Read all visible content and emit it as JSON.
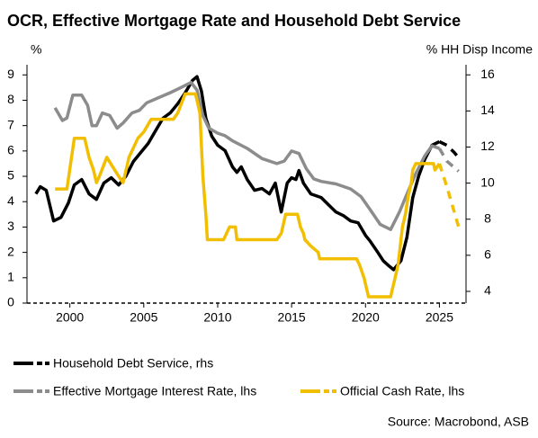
{
  "chart_data": {
    "type": "line",
    "title": "OCR, Effective Mortgage Rate and Household Debt Service",
    "ylabel": "%",
    "y2label": "% HH Disp Income",
    "source": "Source: Macrobond, ASB",
    "xlim": [
      1997.1,
      2026.8
    ],
    "xticks": [
      2000,
      2005,
      2010,
      2015,
      2020,
      2025
    ],
    "ylim": [
      0,
      9.4
    ],
    "yticks": [
      0,
      1,
      2,
      3,
      4,
      5,
      6,
      7,
      8,
      9
    ],
    "y2lim": [
      3.35,
      16.56
    ],
    "y2ticks": [
      4,
      6,
      8,
      10,
      12,
      14,
      16
    ],
    "forecast_from": 2025,
    "legend_position": "bottom",
    "series": [
      {
        "name": "Household Debt Service, rhs",
        "color": "#000000",
        "axis": "y2",
        "x": [
          1997.7,
          1998.0,
          1998.4,
          1998.9,
          1999.4,
          1999.9,
          2000.3,
          2000.8,
          2001.3,
          2001.8,
          2002.3,
          2002.8,
          2003.3,
          2003.8,
          2004.3,
          2004.8,
          2005.3,
          2005.8,
          2006.3,
          2006.8,
          2007.3,
          2007.8,
          2008.3,
          2008.6,
          2008.9,
          2009.2,
          2009.6,
          2010.0,
          2010.5,
          2011.0,
          2011.3,
          2011.6,
          2012.0,
          2012.5,
          2013.0,
          2013.5,
          2013.9,
          2014.3,
          2014.7,
          2015.0,
          2015.3,
          2015.5,
          2015.8,
          2016.3,
          2017.0,
          2017.5,
          2018.0,
          2018.5,
          2019.0,
          2019.5,
          2020.0,
          2020.3,
          2020.8,
          2021.2,
          2021.6,
          2021.9,
          2022.4,
          2022.8,
          2023.2,
          2023.6,
          2024.0,
          2024.5,
          2025.0,
          2025.5,
          2026.0,
          2026.4
        ],
        "values": [
          9.4,
          9.8,
          9.6,
          7.9,
          8.1,
          8.9,
          9.9,
          10.2,
          9.4,
          9.1,
          10.0,
          10.3,
          9.9,
          10.4,
          11.2,
          11.7,
          12.2,
          12.9,
          13.6,
          13.9,
          14.4,
          15.0,
          15.7,
          15.9,
          15.1,
          13.6,
          12.6,
          12.1,
          11.8,
          10.9,
          10.6,
          10.9,
          10.2,
          9.6,
          9.7,
          9.4,
          10.0,
          8.4,
          10.0,
          10.3,
          10.2,
          10.7,
          10.0,
          9.4,
          9.2,
          8.8,
          8.4,
          8.2,
          7.9,
          7.8,
          7.1,
          6.8,
          6.2,
          5.7,
          5.4,
          5.2,
          5.7,
          7.0,
          9.2,
          10.4,
          11.3,
          12.1,
          12.3,
          12.1,
          11.7,
          11.3
        ]
      },
      {
        "name": "Effective Mortgage Interest Rate, lhs",
        "color": "#8c8c8c",
        "axis": "y",
        "x": [
          1999.0,
          1999.5,
          1999.8,
          2000.2,
          2000.8,
          2001.2,
          2001.5,
          2001.8,
          2002.2,
          2002.7,
          2003.2,
          2003.6,
          2004.2,
          2004.7,
          2005.2,
          2006.0,
          2006.8,
          2007.5,
          2008.2,
          2008.6,
          2009.0,
          2009.4,
          2010.0,
          2010.5,
          2011.0,
          2012.0,
          2013.0,
          2014.0,
          2014.5,
          2015.0,
          2015.5,
          2016.0,
          2016.5,
          2017.0,
          2018.0,
          2019.0,
          2019.7,
          2020.3,
          2021.0,
          2021.7,
          2022.3,
          2022.8,
          2023.4,
          2024.0,
          2024.5,
          2025.0,
          2025.5,
          2026.3
        ],
        "values": [
          7.7,
          7.2,
          7.3,
          8.2,
          8.2,
          7.8,
          7.0,
          7.0,
          7.5,
          7.4,
          6.9,
          7.1,
          7.5,
          7.6,
          7.9,
          8.1,
          8.3,
          8.5,
          8.7,
          8.4,
          7.4,
          6.9,
          6.7,
          6.6,
          6.4,
          6.1,
          5.7,
          5.5,
          5.6,
          6.0,
          5.9,
          5.3,
          4.9,
          4.8,
          4.7,
          4.5,
          4.2,
          3.7,
          3.1,
          2.9,
          3.6,
          4.3,
          5.1,
          5.8,
          6.2,
          6.1,
          5.6,
          5.2
        ]
      },
      {
        "name": "Official Cash Rate, lhs",
        "color": "#f2bf00",
        "axis": "y",
        "x": [
          1999.0,
          1999.8,
          2000.3,
          2001.0,
          2001.3,
          2001.6,
          2001.8,
          2002.0,
          2002.5,
          2003.3,
          2003.6,
          2004.0,
          2004.6,
          2005.0,
          2005.5,
          2005.9,
          2007.0,
          2007.3,
          2007.8,
          2008.5,
          2008.8,
          2009.0,
          2009.2,
          2009.3,
          2010.4,
          2010.6,
          2010.8,
          2011.2,
          2011.3,
          2014.0,
          2014.3,
          2014.5,
          2014.6,
          2015.4,
          2015.6,
          2015.8,
          2015.9,
          2016.3,
          2016.8,
          2016.9,
          2019.4,
          2019.6,
          2019.9,
          2020.2,
          2021.7,
          2021.8,
          2021.9,
          2022.2,
          2022.3,
          2022.5,
          2022.7,
          2022.9,
          2023.1,
          2023.2,
          2023.4,
          2024.6,
          2024.7,
          2025.0,
          2025.5,
          2026.3
        ],
        "values": [
          4.5,
          4.5,
          6.5,
          6.5,
          5.75,
          5.25,
          4.75,
          5.0,
          5.75,
          5.0,
          4.75,
          5.75,
          6.5,
          6.75,
          7.25,
          7.25,
          7.25,
          7.5,
          8.25,
          8.25,
          7.5,
          5.0,
          3.5,
          2.5,
          2.5,
          2.75,
          3.0,
          3.0,
          2.5,
          2.5,
          2.75,
          3.25,
          3.5,
          3.5,
          3.0,
          2.75,
          2.5,
          2.25,
          2.0,
          1.75,
          1.75,
          1.5,
          1.0,
          0.25,
          0.25,
          0.5,
          0.75,
          1.5,
          2.0,
          3.0,
          3.5,
          4.25,
          4.75,
          5.25,
          5.5,
          5.5,
          5.25,
          5.5,
          4.6,
          3.0
        ]
      }
    ]
  }
}
